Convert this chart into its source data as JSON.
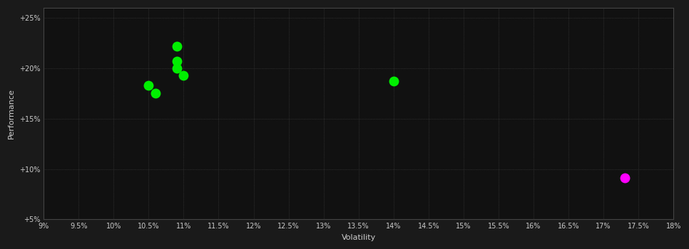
{
  "background_color": "#1a1a1a",
  "plot_bg_color": "#111111",
  "grid_color": "#444444",
  "text_color": "#cccccc",
  "xlabel": "Volatility",
  "ylabel": "Performance",
  "xlim": [
    0.09,
    0.18
  ],
  "ylim": [
    0.05,
    0.26
  ],
  "xticks": [
    0.09,
    0.095,
    0.1,
    0.105,
    0.11,
    0.115,
    0.12,
    0.125,
    0.13,
    0.135,
    0.14,
    0.145,
    0.15,
    0.155,
    0.16,
    0.165,
    0.17,
    0.175,
    0.18
  ],
  "xtick_labels": [
    "9%",
    "9.5%",
    "10%",
    "10.5%",
    "11%",
    "11.5%",
    "12%",
    "12.5%",
    "13%",
    "13.5%",
    "14%",
    "14.5%",
    "15%",
    "15.5%",
    "16%",
    "16.5%",
    "17%",
    "17.5%",
    "18%"
  ],
  "yticks": [
    0.05,
    0.1,
    0.15,
    0.2,
    0.25
  ],
  "ytick_labels": [
    "+5%",
    "+10%",
    "+15%",
    "+20%",
    "+25%"
  ],
  "green_points": [
    [
      0.109,
      0.222
    ],
    [
      0.109,
      0.207
    ],
    [
      0.109,
      0.2
    ],
    [
      0.11,
      0.193
    ],
    [
      0.105,
      0.183
    ],
    [
      0.106,
      0.175
    ],
    [
      0.14,
      0.187
    ]
  ],
  "magenta_points": [
    [
      0.173,
      0.091
    ]
  ],
  "green_color": "#00ee00",
  "magenta_color": "#ff00ff",
  "marker_size": 5
}
